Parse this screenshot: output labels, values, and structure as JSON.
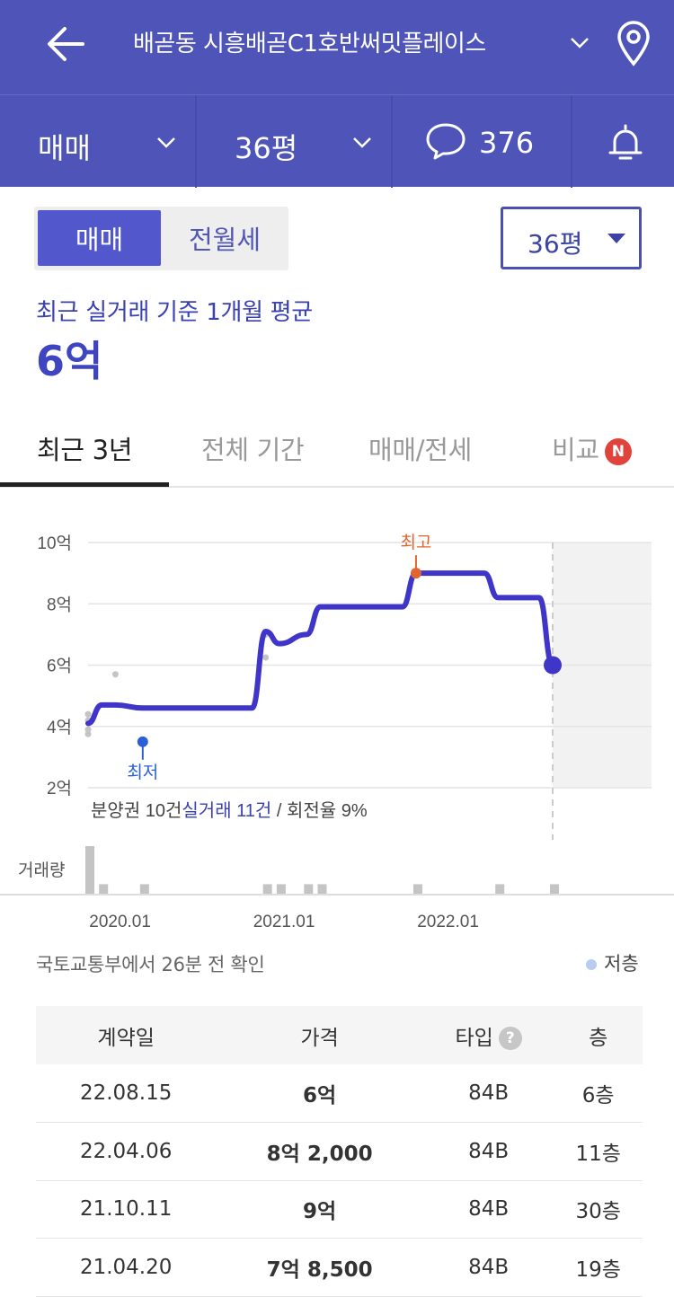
{
  "header": {
    "title": "배곧동 시흥배곧C1호반써밋플레이스",
    "icons": [
      "back-arrow-icon",
      "chevron-down-icon",
      "location-pin-icon"
    ]
  },
  "subbar": {
    "trade_type": "매매",
    "area": "36평",
    "comment_count": "376"
  },
  "segment": {
    "sale": "매매",
    "rent": "전월세"
  },
  "area_select": "36평",
  "average": {
    "label": "최근 실거래 기준 1개월 평균",
    "value": "6억"
  },
  "tabs": [
    {
      "label": "최근 3년"
    },
    {
      "label": "전체 기간"
    },
    {
      "label": "매매/전세"
    },
    {
      "label": "비교",
      "badge": "N"
    }
  ],
  "chart_data": {
    "type": "line",
    "y_ticks": [
      "10억",
      "8억",
      "6억",
      "4억",
      "2억"
    ],
    "y_range": [
      2,
      10
    ],
    "y_unit": "억",
    "x_ticks": [
      "2020.01",
      "2021.01",
      "2022.01"
    ],
    "high_label": "최고",
    "low_label": "최저",
    "summary": {
      "presale": "분양권 10건",
      "actual": "실거래 11건",
      "turnover": " / 회전율 9%"
    },
    "volume_label": "거래량",
    "series": [
      {
        "values": [
          {
            "x": "2019.10",
            "y": 4.1
          },
          {
            "x": "2019.11",
            "y": 4.7
          },
          {
            "x": "2019.12",
            "y": 4.7
          },
          {
            "x": "2020.02",
            "y": 4.6
          },
          {
            "x": "2020.10",
            "y": 4.6
          },
          {
            "x": "2020.11",
            "y": 7.1
          },
          {
            "x": "2020.12",
            "y": 6.7
          },
          {
            "x": "2021.02",
            "y": 7.0
          },
          {
            "x": "2021.03",
            "y": 7.9
          },
          {
            "x": "2021.09",
            "y": 7.9
          },
          {
            "x": "2021.10",
            "y": 9.0
          },
          {
            "x": "2022.03",
            "y": 9.0
          },
          {
            "x": "2022.04",
            "y": 8.2
          },
          {
            "x": "2022.07",
            "y": 8.2
          },
          {
            "x": "2022.08",
            "y": 6.0
          }
        ]
      }
    ],
    "volume": [
      {
        "x": "2019.10",
        "count": 5
      },
      {
        "x": "2019.11",
        "count": 1
      },
      {
        "x": "2020.02",
        "count": 1
      },
      {
        "x": "2020.11",
        "count": 1
      },
      {
        "x": "2020.12",
        "count": 1
      },
      {
        "x": "2021.02",
        "count": 1
      },
      {
        "x": "2021.03",
        "count": 1
      },
      {
        "x": "2021.10",
        "count": 1
      },
      {
        "x": "2022.04",
        "count": 1
      },
      {
        "x": "2022.08",
        "count": 1
      }
    ],
    "colors": {
      "line": "#3f36c9",
      "high": "#e06530",
      "low": "#2a5fd8",
      "scatter": "#c4c4c4"
    }
  },
  "footer_note": "국토교통부에서 26분 전 확인",
  "legend": "저층",
  "table": {
    "headers": [
      "계약일",
      "가격",
      "타입",
      "층"
    ],
    "rows": [
      {
        "date": "22.08.15",
        "price": "6억",
        "type": "84B",
        "floor": "6층"
      },
      {
        "date": "22.04.06",
        "price": "8억 2,000",
        "type": "84B",
        "floor": "11층"
      },
      {
        "date": "21.10.11",
        "price": "9억",
        "type": "84B",
        "floor": "30층"
      },
      {
        "date": "21.04.20",
        "price": "7억 8,500",
        "type": "84B",
        "floor": "19층"
      }
    ]
  }
}
